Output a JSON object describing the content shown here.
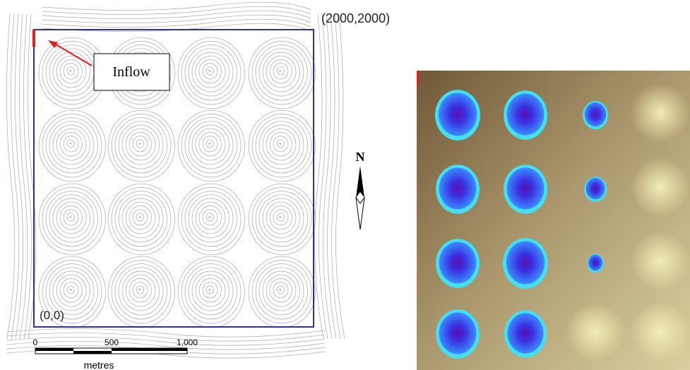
{
  "labels": {
    "top_right_corner": "(2000,2000)",
    "origin": "(0,0)",
    "inflow": "Inflow",
    "north": "N"
  },
  "scale_bar": {
    "ticks": [
      "0",
      "500",
      "1,000"
    ],
    "unit": "metres"
  }
}
